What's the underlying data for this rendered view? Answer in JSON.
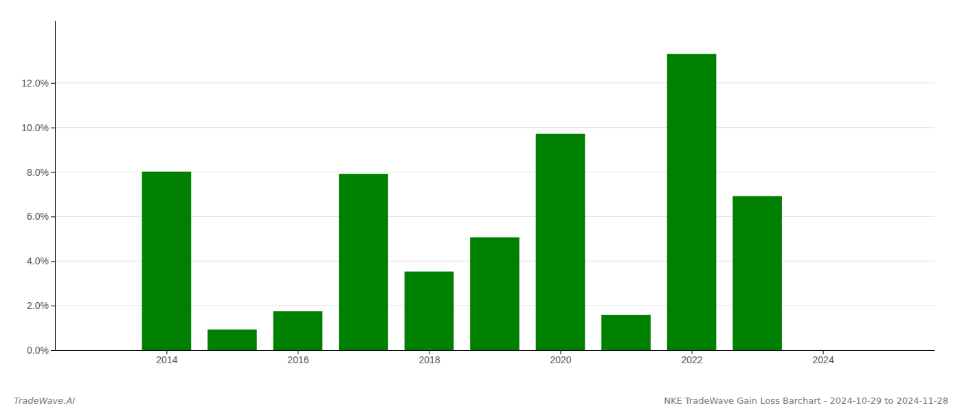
{
  "chart_data": {
    "type": "bar",
    "x": [
      2014,
      2015,
      2016,
      2017,
      2018,
      2019,
      2020,
      2021,
      2022,
      2023
    ],
    "values": [
      0.0802,
      0.0093,
      0.0175,
      0.0792,
      0.0353,
      0.0507,
      0.0972,
      0.0158,
      0.133,
      0.0692
    ],
    "color": "#008000",
    "xlim": [
      2012.3,
      2025.7
    ],
    "xticks": [
      2014,
      2016,
      2018,
      2020,
      2022,
      2024
    ],
    "ylim": [
      0,
      0.148
    ],
    "yticks": [
      {
        "value": 0.0,
        "label": "0.0%"
      },
      {
        "value": 0.02,
        "label": "2.0%"
      },
      {
        "value": 0.04,
        "label": "4.0%"
      },
      {
        "value": 0.06,
        "label": "6.0%"
      },
      {
        "value": 0.08,
        "label": "8.0%"
      },
      {
        "value": 0.1,
        "label": "10.0%"
      },
      {
        "value": 0.12,
        "label": "12.0%"
      }
    ],
    "grid": true,
    "annotations": [
      "TradeWave.AI",
      "NKE TradeWave Gain Loss Barchart - 2024-10-29 to 2024-11-28"
    ]
  }
}
